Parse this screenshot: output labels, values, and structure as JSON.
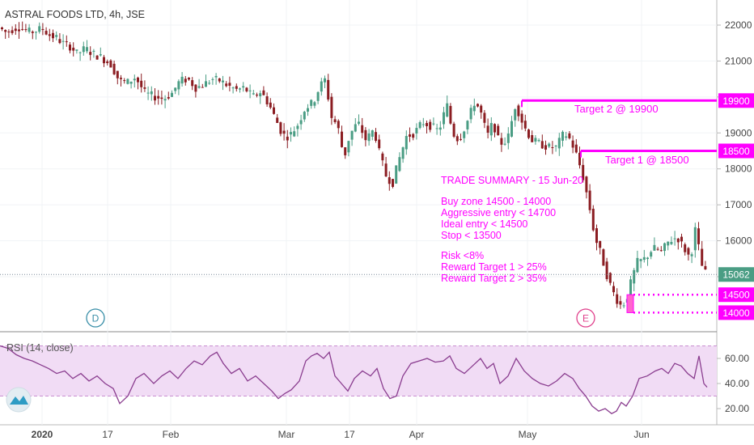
{
  "chart_data": {
    "type": "candlestick",
    "title": "ASTRAL FOODS LTD, 4h, JSE",
    "price_axis": {
      "ticks": [
        "22000",
        "21000",
        "20000",
        "19000",
        "18000",
        "17000",
        "16000",
        "15000"
      ],
      "ylim": [
        13800,
        22300
      ]
    },
    "x_ticks": [
      "2020",
      "17",
      "Feb",
      "Mar",
      "17",
      "Apr",
      "May",
      "Jun"
    ],
    "last_price": {
      "label": "15062",
      "value": 15062,
      "color": "#4a9d84"
    },
    "levels": [
      {
        "label": "19900",
        "value": 19900,
        "text": "Target 2 @ 19900",
        "color": "#ff00ff"
      },
      {
        "label": "18500",
        "value": 18500,
        "text": "Target 1 @ 18500",
        "color": "#ff00ff"
      },
      {
        "label": "14500",
        "value": 14500,
        "color": "#ff00ff"
      },
      {
        "label": "14000",
        "value": 14000,
        "color": "#ff00ff"
      }
    ],
    "summary": [
      "TRADE SUMMARY - 15 Jun-20",
      "",
      "Buy zone 14500 - 14000",
      "Aggressive entry < 14700",
      "Ideal entry < 14500",
      "Stop < 13500",
      "",
      "Risk <8%",
      "Reward Target 1 > 25%",
      "Reward Target 2 > 35%"
    ],
    "markers": [
      {
        "label": "D"
      },
      {
        "label": "E"
      }
    ],
    "price_path": [
      [
        0,
        21950
      ],
      [
        10,
        21800
      ],
      [
        25,
        21950
      ],
      [
        40,
        21800
      ],
      [
        55,
        21900
      ],
      [
        65,
        21700
      ],
      [
        72,
        21650
      ],
      [
        80,
        21500
      ],
      [
        90,
        21400
      ],
      [
        98,
        21200
      ],
      [
        108,
        21350
      ],
      [
        118,
        21200
      ],
      [
        128,
        21100
      ],
      [
        140,
        20900
      ],
      [
        150,
        20450
      ],
      [
        160,
        20400
      ],
      [
        170,
        20550
      ],
      [
        182,
        20100
      ],
      [
        195,
        20000
      ],
      [
        205,
        19950
      ],
      [
        215,
        20100
      ],
      [
        225,
        20450
      ],
      [
        235,
        20500
      ],
      [
        245,
        20250
      ],
      [
        255,
        20350
      ],
      [
        265,
        20500
      ],
      [
        275,
        20450
      ],
      [
        285,
        20300
      ],
      [
        295,
        20200
      ],
      [
        305,
        20250
      ],
      [
        315,
        20000
      ],
      [
        325,
        20150
      ],
      [
        335,
        19800
      ],
      [
        345,
        19300
      ],
      [
        352,
        18950
      ],
      [
        360,
        18900
      ],
      [
        370,
        19200
      ],
      [
        380,
        19700
      ],
      [
        390,
        19850
      ],
      [
        398,
        20300
      ],
      [
        405,
        20500
      ],
      [
        412,
        19450
      ],
      [
        420,
        19200
      ],
      [
        428,
        18300
      ],
      [
        435,
        18950
      ],
      [
        445,
        19300
      ],
      [
        455,
        18800
      ],
      [
        465,
        19100
      ],
      [
        472,
        18400
      ],
      [
        480,
        17800
      ],
      [
        488,
        17600
      ],
      [
        495,
        18200
      ],
      [
        505,
        18900
      ],
      [
        515,
        19000
      ],
      [
        525,
        19300
      ],
      [
        535,
        19200
      ],
      [
        545,
        19050
      ],
      [
        555,
        19800
      ],
      [
        562,
        19000
      ],
      [
        570,
        18800
      ],
      [
        580,
        19300
      ],
      [
        590,
        19900
      ],
      [
        598,
        19500
      ],
      [
        605,
        18900
      ],
      [
        612,
        19300
      ],
      [
        620,
        18700
      ],
      [
        630,
        18800
      ],
      [
        640,
        19800
      ],
      [
        650,
        19200
      ],
      [
        660,
        18800
      ],
      [
        670,
        18700
      ],
      [
        680,
        18600
      ],
      [
        690,
        18600
      ],
      [
        700,
        19000
      ],
      [
        708,
        18800
      ],
      [
        715,
        18400
      ],
      [
        722,
        17900
      ],
      [
        730,
        17100
      ],
      [
        738,
        16100
      ],
      [
        746,
        15600
      ],
      [
        752,
        15100
      ],
      [
        758,
        14700
      ],
      [
        764,
        14400
      ],
      [
        770,
        14200
      ],
      [
        776,
        14300
      ],
      [
        782,
        14800
      ],
      [
        790,
        15400
      ],
      [
        800,
        15500
      ],
      [
        810,
        15800
      ],
      [
        820,
        15700
      ],
      [
        830,
        16000
      ],
      [
        840,
        16100
      ],
      [
        848,
        15800
      ],
      [
        856,
        15500
      ],
      [
        862,
        16300
      ],
      [
        868,
        15600
      ],
      [
        872,
        15100
      ]
    ],
    "rsi": {
      "label": "RSI (14, close)",
      "ticks": [
        "60.00",
        "40.00",
        "20.00"
      ],
      "ylim": [
        10,
        80
      ],
      "band": [
        30,
        70
      ],
      "path": [
        [
          0,
          70
        ],
        [
          10,
          68
        ],
        [
          20,
          63
        ],
        [
          30,
          60
        ],
        [
          40,
          58
        ],
        [
          50,
          55
        ],
        [
          60,
          52
        ],
        [
          70,
          48
        ],
        [
          80,
          50
        ],
        [
          90,
          44
        ],
        [
          100,
          48
        ],
        [
          110,
          42
        ],
        [
          120,
          46
        ],
        [
          130,
          40
        ],
        [
          140,
          36
        ],
        [
          148,
          24
        ],
        [
          158,
          30
        ],
        [
          168,
          44
        ],
        [
          178,
          48
        ],
        [
          190,
          40
        ],
        [
          200,
          46
        ],
        [
          210,
          50
        ],
        [
          220,
          44
        ],
        [
          230,
          52
        ],
        [
          240,
          58
        ],
        [
          250,
          55
        ],
        [
          260,
          62
        ],
        [
          268,
          65
        ],
        [
          276,
          56
        ],
        [
          286,
          48
        ],
        [
          296,
          52
        ],
        [
          306,
          42
        ],
        [
          316,
          46
        ],
        [
          326,
          40
        ],
        [
          336,
          34
        ],
        [
          344,
          28
        ],
        [
          352,
          32
        ],
        [
          360,
          35
        ],
        [
          370,
          42
        ],
        [
          378,
          58
        ],
        [
          385,
          62
        ],
        [
          392,
          64
        ],
        [
          400,
          60
        ],
        [
          407,
          65
        ],
        [
          414,
          46
        ],
        [
          422,
          40
        ],
        [
          430,
          34
        ],
        [
          438,
          44
        ],
        [
          448,
          50
        ],
        [
          458,
          46
        ],
        [
          466,
          52
        ],
        [
          474,
          36
        ],
        [
          482,
          28
        ],
        [
          490,
          30
        ],
        [
          498,
          46
        ],
        [
          508,
          56
        ],
        [
          518,
          58
        ],
        [
          528,
          60
        ],
        [
          538,
          57
        ],
        [
          548,
          58
        ],
        [
          556,
          62
        ],
        [
          564,
          52
        ],
        [
          574,
          48
        ],
        [
          584,
          54
        ],
        [
          594,
          60
        ],
        [
          602,
          52
        ],
        [
          610,
          56
        ],
        [
          618,
          40
        ],
        [
          628,
          46
        ],
        [
          638,
          60
        ],
        [
          648,
          50
        ],
        [
          658,
          44
        ],
        [
          668,
          40
        ],
        [
          678,
          38
        ],
        [
          688,
          42
        ],
        [
          698,
          48
        ],
        [
          708,
          44
        ],
        [
          716,
          36
        ],
        [
          724,
          30
        ],
        [
          732,
          22
        ],
        [
          740,
          18
        ],
        [
          748,
          20
        ],
        [
          756,
          16
        ],
        [
          762,
          18
        ],
        [
          768,
          25
        ],
        [
          774,
          22
        ],
        [
          782,
          30
        ],
        [
          790,
          44
        ],
        [
          800,
          46
        ],
        [
          810,
          50
        ],
        [
          818,
          52
        ],
        [
          826,
          48
        ],
        [
          834,
          56
        ],
        [
          842,
          54
        ],
        [
          850,
          48
        ],
        [
          858,
          44
        ],
        [
          864,
          62
        ],
        [
          870,
          40
        ],
        [
          874,
          37
        ]
      ]
    },
    "colors": {
      "up": "#4a9d84",
      "down": "#8b1d22",
      "accent": "#ff00ff",
      "rsi_line": "#8a3d8f",
      "rsi_band": "#f1dcf5"
    }
  }
}
